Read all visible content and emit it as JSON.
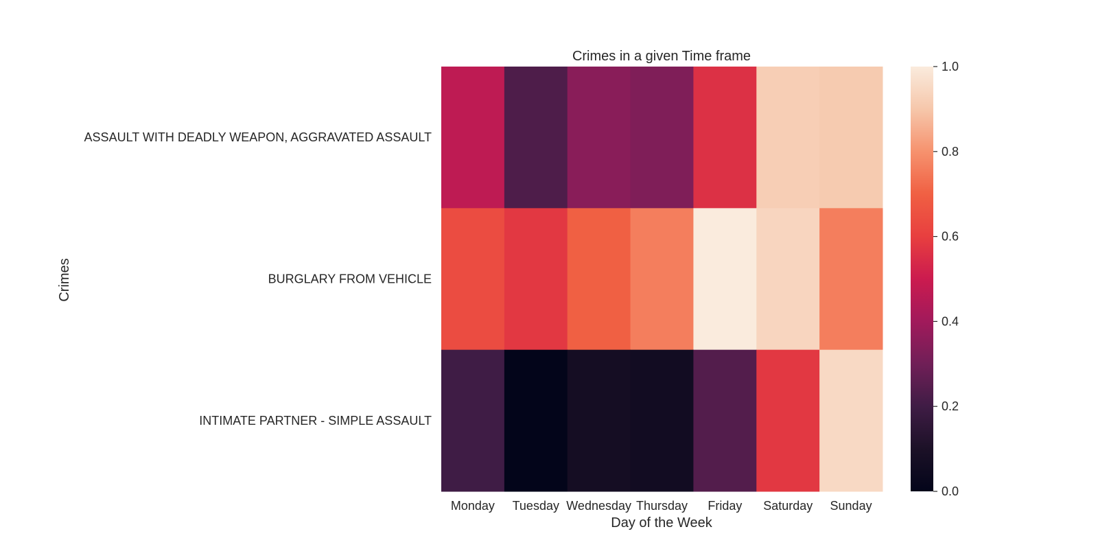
{
  "chart_data": {
    "type": "heatmap",
    "title": "Crimes in a given Time frame",
    "xlabel": "Day of the Week",
    "ylabel": "Crimes",
    "x": [
      "Monday",
      "Tuesday",
      "Wednesday",
      "Thursday",
      "Friday",
      "Saturday",
      "Sunday"
    ],
    "y": [
      "ASSAULT WITH DEADLY WEAPON, AGGRAVATED ASSAULT",
      "BURGLARY FROM VEHICLE",
      "INTIMATE PARTNER - SIMPLE ASSAULT"
    ],
    "values": [
      [
        0.47,
        0.23,
        0.35,
        0.33,
        0.56,
        0.92,
        0.91
      ],
      [
        0.64,
        0.58,
        0.7,
        0.76,
        1.0,
        0.94,
        0.76
      ],
      [
        0.2,
        0.0,
        0.07,
        0.06,
        0.24,
        0.58,
        0.95
      ]
    ],
    "colorbar": {
      "range": [
        0.0,
        1.0
      ],
      "ticks": [
        "0.0",
        "0.2",
        "0.4",
        "0.6",
        "0.8",
        "1.0"
      ],
      "colormap": "rocket"
    }
  }
}
